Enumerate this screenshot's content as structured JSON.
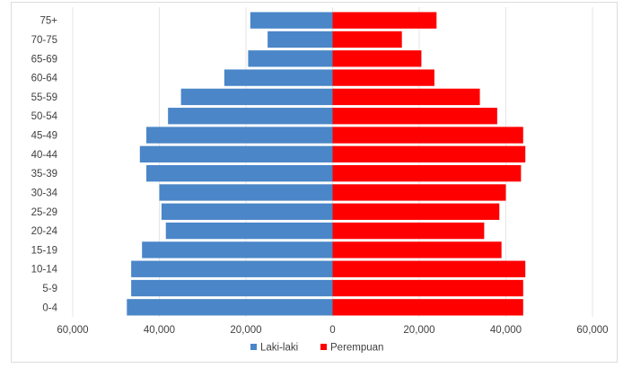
{
  "chart_data": {
    "type": "bar",
    "orientation": "horizontal-population-pyramid",
    "categories": [
      "0-4",
      "5-9",
      "10-14",
      "15-19",
      "20-24",
      "25-29",
      "30-34",
      "35-39",
      "40-44",
      "45-49",
      "50-54",
      "55-59",
      "60-64",
      "65-69",
      "70-75",
      "75+"
    ],
    "series": [
      {
        "name": "Laki-laki",
        "color": "#4a86c8",
        "values": [
          47500,
          46500,
          46500,
          44000,
          38500,
          39500,
          40000,
          43000,
          44500,
          43000,
          38000,
          35000,
          25000,
          19500,
          15000,
          19000
        ]
      },
      {
        "name": "Perempuan",
        "color": "#ff0000",
        "values": [
          44000,
          44000,
          44500,
          39000,
          35000,
          38500,
          40000,
          43500,
          44500,
          44000,
          38000,
          34000,
          23500,
          20500,
          16000,
          24000
        ]
      }
    ],
    "xlim": [
      -60000,
      60000
    ],
    "xticks": [
      -60000,
      -40000,
      -20000,
      0,
      20000,
      40000,
      60000
    ],
    "xtick_labels": [
      "60,000",
      "40,000",
      "20,000",
      "0",
      "20,000",
      "40,000",
      "60,000"
    ],
    "grid": "vertical",
    "legend_position": "bottom"
  }
}
